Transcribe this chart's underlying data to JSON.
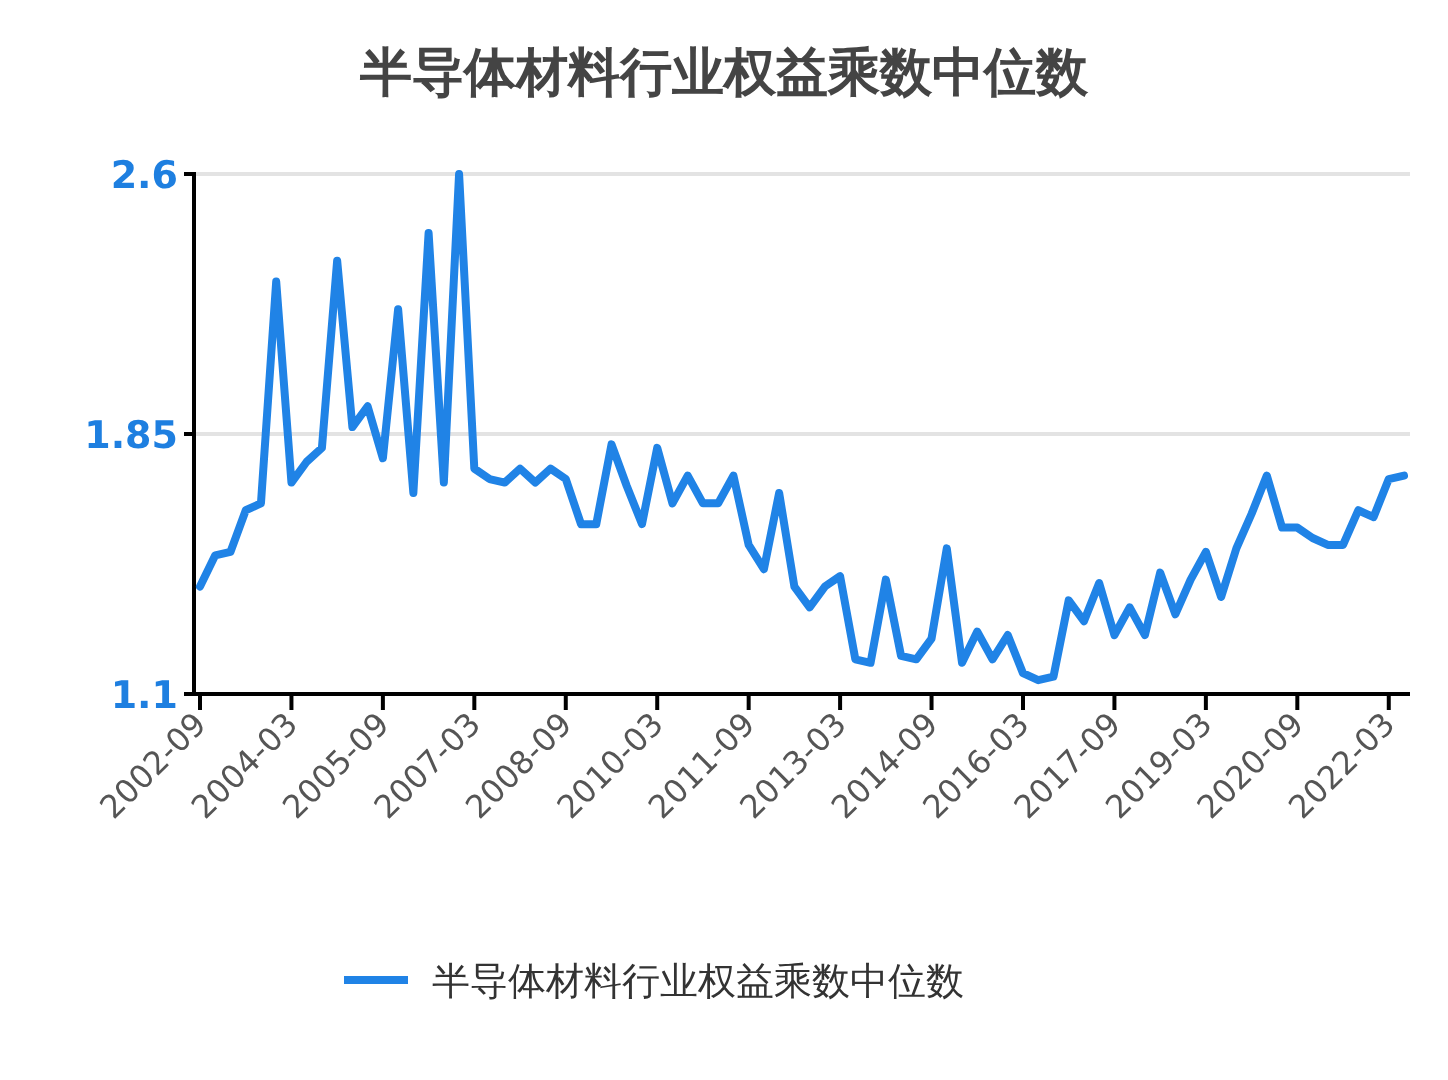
{
  "chart_data": {
    "type": "line",
    "title": "半导体材料行业权益乘数中位数",
    "categories": [
      "2002-09",
      null,
      null,
      null,
      null,
      null,
      "2004-03",
      null,
      null,
      null,
      null,
      null,
      "2005-09",
      null,
      null,
      null,
      null,
      null,
      "2007-03",
      null,
      null,
      null,
      null,
      null,
      "2008-09",
      null,
      null,
      null,
      null,
      null,
      "2010-03",
      null,
      null,
      null,
      null,
      null,
      "2011-09",
      null,
      null,
      null,
      null,
      null,
      "2013-03",
      null,
      null,
      null,
      null,
      null,
      "2014-09",
      null,
      null,
      null,
      null,
      null,
      "2016-03",
      null,
      null,
      null,
      null,
      null,
      "2017-09",
      null,
      null,
      null,
      null,
      null,
      "2019-03",
      null,
      null,
      null,
      null,
      null,
      "2020-09",
      null,
      null,
      null,
      null,
      null,
      "2022-03",
      null
    ],
    "series": [
      {
        "name": "半导体材料行业权益乘数中位数",
        "color": "#2083e6",
        "values": [
          1.41,
          1.5,
          1.51,
          1.63,
          1.65,
          2.29,
          1.71,
          1.77,
          1.81,
          2.35,
          1.87,
          1.93,
          1.78,
          2.21,
          1.68,
          2.43,
          1.71,
          2.6,
          1.75,
          1.72,
          1.71,
          1.75,
          1.71,
          1.75,
          1.72,
          1.59,
          1.59,
          1.82,
          1.7,
          1.59,
          1.81,
          1.65,
          1.73,
          1.65,
          1.65,
          1.73,
          1.53,
          1.46,
          1.68,
          1.41,
          1.35,
          1.41,
          1.44,
          1.2,
          1.19,
          1.43,
          1.21,
          1.2,
          1.26,
          1.52,
          1.19,
          1.28,
          1.2,
          1.27,
          1.16,
          1.14,
          1.15,
          1.37,
          1.31,
          1.42,
          1.27,
          1.35,
          1.27,
          1.45,
          1.33,
          1.43,
          1.51,
          1.38,
          1.52,
          1.62,
          1.73,
          1.58,
          1.58,
          1.55,
          1.53,
          1.53,
          1.63,
          1.61,
          1.72,
          1.73
        ]
      }
    ],
    "ylim": [
      1.1,
      2.6
    ],
    "yticks": [
      1.1,
      1.85,
      2.6
    ],
    "grid": "y",
    "legend": "bottom",
    "marker": "none",
    "line_style": "solid"
  }
}
